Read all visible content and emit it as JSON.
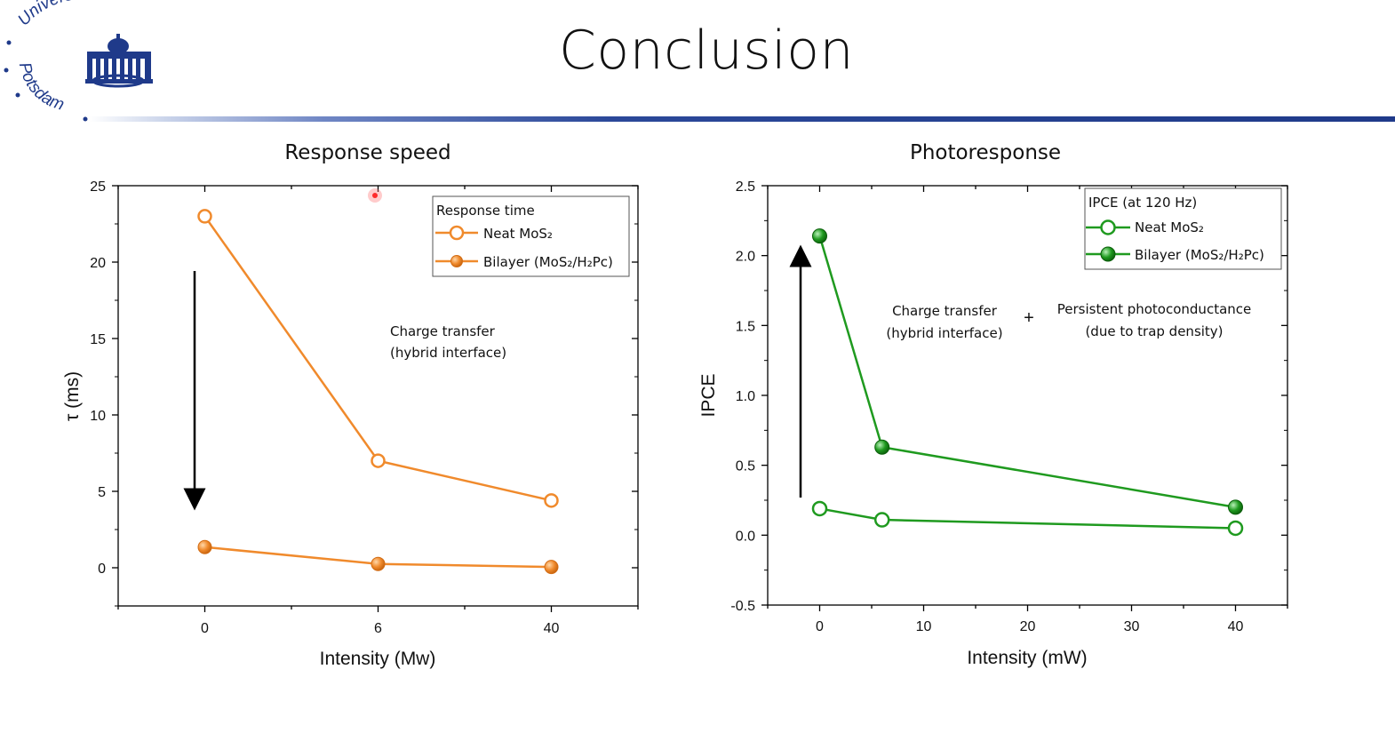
{
  "slide": {
    "title": "Conclusion",
    "logo_text_top": "Universität",
    "logo_text_bottom": "Potsdam"
  },
  "colors": {
    "orange": "#f08a2c",
    "green": "#1f9a1f",
    "rule": "#1f3a8a",
    "logo_blue": "#1f3a8a"
  },
  "chart_data": [
    {
      "type": "line",
      "title": "Response speed",
      "xlabel": "Intensity (Mw)",
      "ylabel": "τ (ms)",
      "categorical_x": true,
      "categories": [
        "0",
        "6",
        "40"
      ],
      "ylim": [
        -2.5,
        25
      ],
      "yticks": [
        0,
        5,
        10,
        15,
        20,
        25
      ],
      "xlim_index": [
        -0.5,
        2.5
      ],
      "series": [
        {
          "name": "Neat MoS₂",
          "marker": "open",
          "values": [
            23.0,
            7.0,
            4.4
          ]
        },
        {
          "name": "Bilayer (MoS₂/H₂Pc)",
          "marker": "filled",
          "values": [
            1.35,
            0.25,
            0.05
          ]
        }
      ],
      "legend_title": "Response time",
      "legend_position": "top-right",
      "annotation_lines": [
        "Charge transfer",
        "(hybrid interface)"
      ],
      "arrow": "down",
      "color": "#f08a2c"
    },
    {
      "type": "line",
      "title": "Photoresponse",
      "xlabel": "Intensity (mW)",
      "ylabel": "IPCE",
      "x": [
        0,
        6,
        40
      ],
      "xlim": [
        -5,
        45
      ],
      "xticks": [
        0,
        10,
        20,
        30,
        40
      ],
      "ylim": [
        -0.5,
        2.5
      ],
      "yticks": [
        -0.5,
        0.0,
        0.5,
        1.0,
        1.5,
        2.0,
        2.5
      ],
      "series": [
        {
          "name": "Neat MoS₂",
          "marker": "open",
          "values": [
            0.19,
            0.11,
            0.05
          ]
        },
        {
          "name": "Bilayer (MoS₂/H₂Pc)",
          "marker": "filled",
          "values": [
            2.14,
            0.63,
            0.2
          ]
        }
      ],
      "legend_title": "IPCE (at 120 Hz)",
      "legend_position": "top-right",
      "annotation_lines": [
        "Charge transfer",
        "(hybrid interface)"
      ],
      "annotation2_lines": [
        "Persistent photoconductance",
        "(due to trap density)"
      ],
      "plus": "+",
      "arrow": "up",
      "color": "#1f9a1f"
    }
  ]
}
